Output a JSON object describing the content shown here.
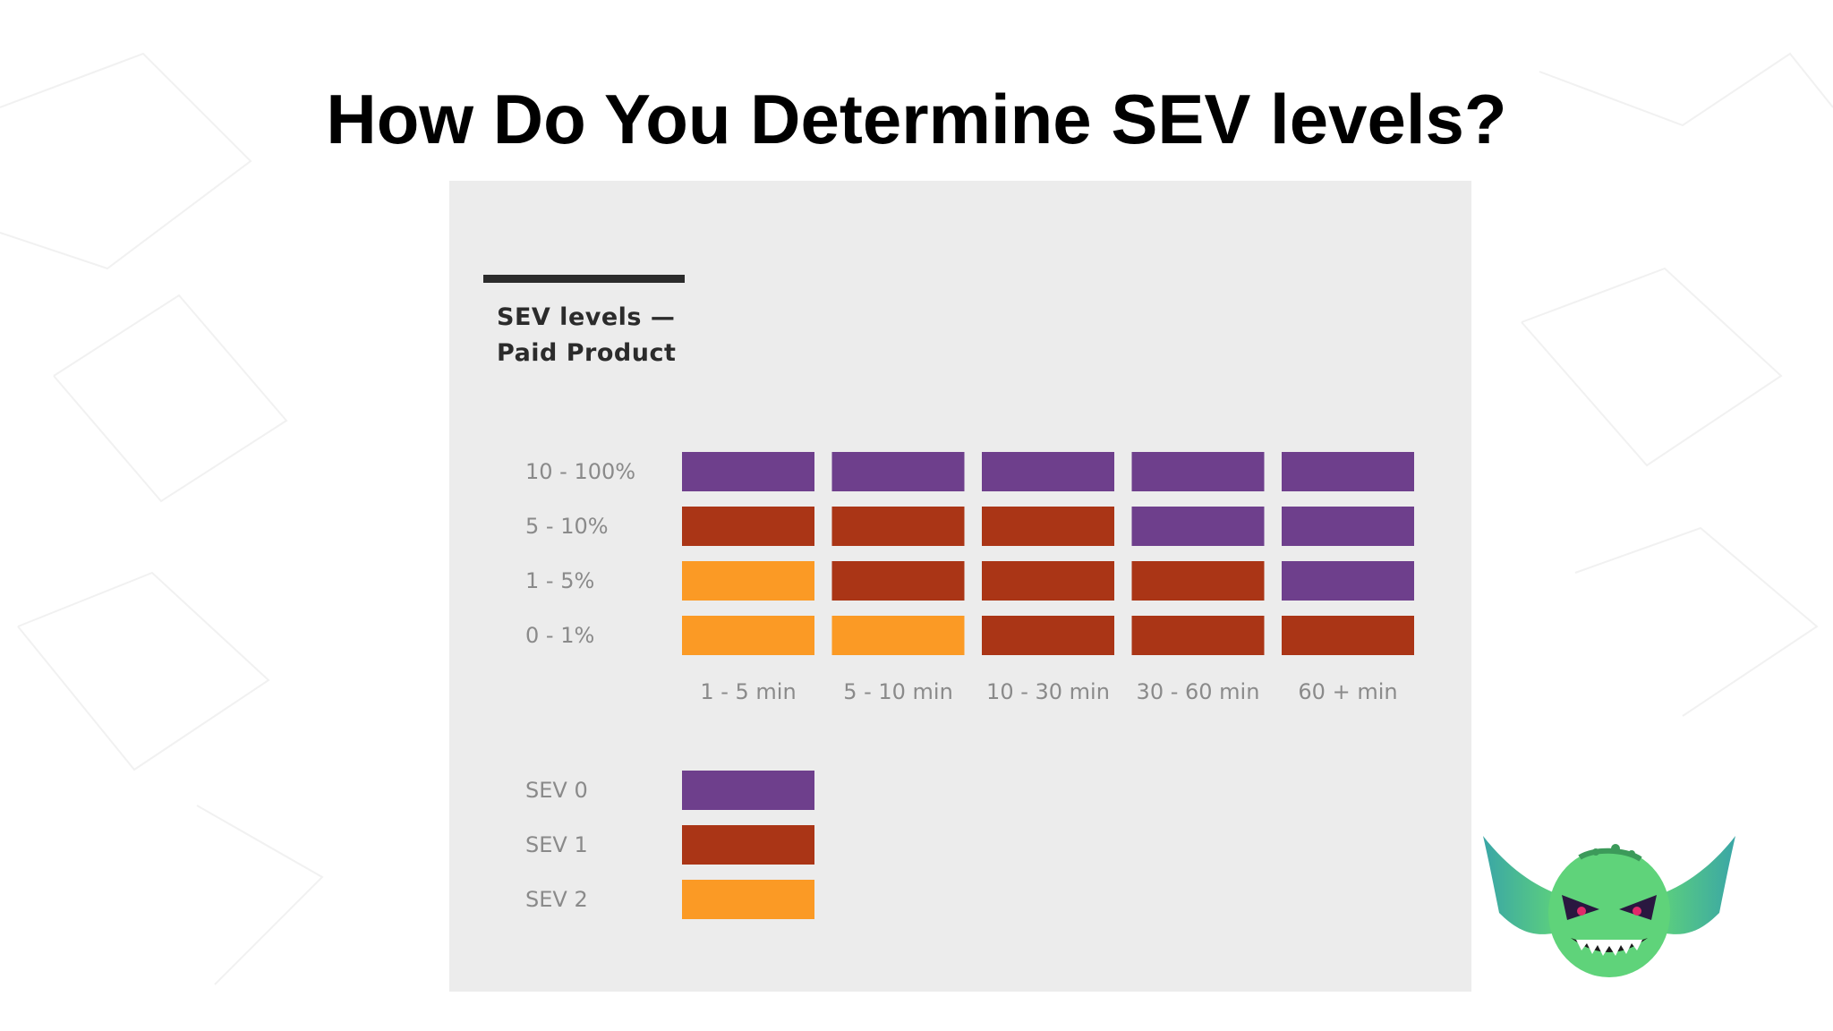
{
  "slide": {
    "title": "How Do You Determine SEV levels?"
  },
  "chart_data": {
    "type": "heatmap",
    "title_lines": [
      "SEV levels —",
      "Paid Product"
    ],
    "y_categories": [
      "10 - 100%",
      "5 - 10%",
      "1 - 5%",
      "0 - 1%"
    ],
    "x_categories": [
      "1 - 5 min",
      "5 - 10 min",
      "10 - 30 min",
      "30 - 60 min",
      "60 + min"
    ],
    "cells": [
      [
        0,
        0,
        0,
        0,
        0
      ],
      [
        1,
        1,
        1,
        0,
        0
      ],
      [
        2,
        1,
        1,
        1,
        0
      ],
      [
        2,
        2,
        1,
        1,
        1
      ]
    ],
    "legend": [
      {
        "label": "SEV 0",
        "color": "#6e3f8c"
      },
      {
        "label": "SEV 1",
        "color": "#aa3516"
      },
      {
        "label": "SEV 2",
        "color": "#fb9a25"
      }
    ],
    "legend_placement": "bottom-left",
    "grid": false
  },
  "mascot": {
    "icon": "goblin-mascot-icon",
    "color": "#5fd37a"
  }
}
